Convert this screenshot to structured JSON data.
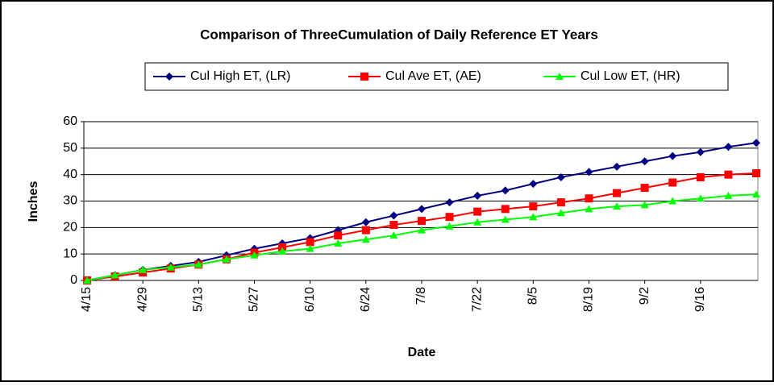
{
  "chart_data": {
    "type": "line",
    "title": "Comparison of ThreeCumulation of Daily Reference ET Years",
    "x_label": "Date",
    "y_label": "Inches",
    "categories": [
      "4/15",
      null,
      "4/29",
      null,
      "5/13",
      null,
      "5/27",
      null,
      "6/10",
      null,
      "6/24",
      null,
      "7/8",
      null,
      "7/22",
      null,
      "8/5",
      null,
      "8/19",
      null,
      "9/2",
      null,
      "9/16",
      null,
      null
    ],
    "series": [
      {
        "name": "Cul High ET, (LR)",
        "color": "#000080",
        "marker": "diamond",
        "values": [
          0,
          2,
          4,
          5.5,
          7,
          9.5,
          12,
          14,
          16,
          19,
          22,
          24.5,
          27,
          29.5,
          32,
          34,
          36.5,
          39,
          41,
          43,
          45,
          47,
          48.5,
          50.5,
          52
        ]
      },
      {
        "name": "Cul Ave ET, (AE)",
        "color": "#ff0000",
        "marker": "square",
        "values": [
          0,
          1.5,
          3,
          4.5,
          6,
          8,
          10.5,
          12.5,
          14.5,
          17,
          19,
          21,
          22.5,
          24,
          26,
          27,
          28,
          29.5,
          31,
          33,
          35,
          37,
          39,
          40,
          40.5
        ]
      },
      {
        "name": "Cul Low ET, (HR)",
        "color": "#00ff00",
        "marker": "triangle",
        "values": [
          0,
          2,
          4,
          5,
          6,
          8,
          9.5,
          11,
          12,
          14,
          15.5,
          17,
          19,
          20.5,
          22,
          23,
          24,
          25.5,
          27,
          28,
          28.5,
          30,
          31,
          32,
          32.5
        ]
      }
    ],
    "ylim": [
      0,
      60
    ],
    "yticks": [
      0,
      10,
      20,
      30,
      40,
      50,
      60
    ],
    "grid": true
  }
}
